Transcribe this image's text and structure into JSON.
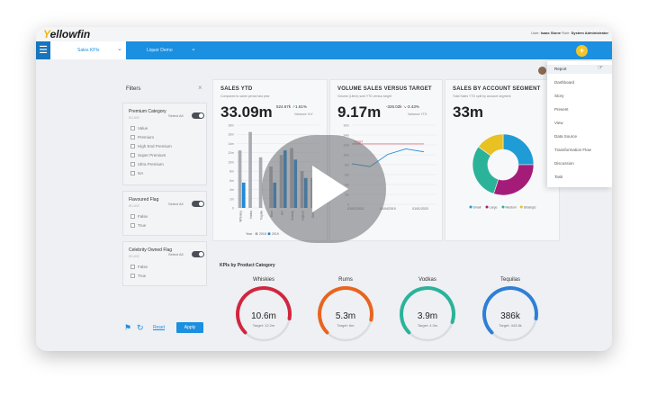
{
  "app": {
    "logo": "Yellowfin",
    "user_label": "User:",
    "user_name": "Isaac Stone",
    "role_label": "Role:",
    "role_name": "System Administrator"
  },
  "nav": {
    "tab1": "Sales KPIs",
    "tab2": "Liquor Demo"
  },
  "filters": {
    "title": "Filters",
    "groups": [
      {
        "title": "Premium Category",
        "sub": "IS LIKE",
        "select_all": "Select All",
        "options": [
          "Value",
          "Premium",
          "High End Premium",
          "Super Premium",
          "Ultra Premium",
          "NA"
        ]
      },
      {
        "title": "Flavoured Flag",
        "sub": "IS LIKE",
        "select_all": "Select All",
        "options": [
          "False",
          "True"
        ]
      },
      {
        "title": "Celebrity Owned Flag",
        "sub": "IS LIKE",
        "select_all": "Select All",
        "options": [
          "False",
          "True"
        ]
      }
    ],
    "reset": "Reset",
    "apply": "Apply"
  },
  "cards": {
    "sales": {
      "title": "SALES YTD",
      "sub": "Compared to same period last year",
      "value": "33.09m",
      "var1": "524.67k",
      "var2": "1.61%",
      "var_label": "Variance YoY"
    },
    "volume": {
      "title": "VOLUME SALES VERSUS TARGET",
      "sub": "Volume (Liters) sold YTD versus target",
      "value": "9.17m",
      "var1": "-326.02k",
      "var2": "-3.43%",
      "var_label": "Variance YTD"
    },
    "account": {
      "title": "SALES BY ACCOUNT SEGMENT",
      "sub": "Total Sales YTD split by account segment",
      "value": "33m"
    }
  },
  "chart_data": [
    {
      "type": "bar",
      "categories": [
        "Whiskey",
        "Vodka",
        "Tequila",
        "Rum",
        "Gin",
        "Brandy",
        "Liqueur",
        "Other"
      ],
      "series": [
        {
          "name": "2018",
          "values": [
            12.5,
            16.5,
            11,
            9,
            11.5,
            13,
            8,
            6.5
          ]
        },
        {
          "name": "2019",
          "values": [
            5.5,
            0,
            0,
            5.5,
            12.5,
            10.5,
            6.5,
            0
          ]
        }
      ],
      "ylim": [
        0,
        18
      ],
      "yticks": [
        "18m",
        "16m",
        "14m",
        "12m",
        "10m",
        "8m",
        "6m",
        "4m",
        "2m",
        "0"
      ],
      "legend": [
        "Year",
        "2018",
        "2019"
      ]
    },
    {
      "type": "line",
      "x": [
        "2018",
        "Q1",
        "Q2",
        "Q3",
        "2019"
      ],
      "series": [
        {
          "name": "Volume",
          "values": [
            8.2,
            7.6,
            10.1,
            11.2,
            10.6
          ]
        }
      ],
      "target_label": "Target",
      "target": 12.2,
      "yticks": [
        "16m",
        "14m",
        "12m",
        "10m",
        "8m",
        "6m",
        "4m",
        "2m",
        "0"
      ],
      "xticks": [
        "01/01/2018",
        "01/04/2019",
        "01/01/2020"
      ],
      "ylim": [
        0,
        16
      ]
    },
    {
      "type": "pie",
      "labels": [
        "Small",
        "Large",
        "Medium",
        "Strategic"
      ],
      "values": [
        25,
        30,
        30,
        15
      ],
      "colors": [
        "#1f9bd6",
        "#a51c78",
        "#2bb39a",
        "#e8c123"
      ]
    }
  ],
  "kpis": {
    "title": "KPIs by Product Category",
    "items": [
      {
        "name": "Whiskies",
        "value": "10.6m",
        "target": "Target: 12.2m",
        "pct": 0.87,
        "color": "#d2263f"
      },
      {
        "name": "Rums",
        "value": "5.3m",
        "target": "Target: 6m",
        "pct": 0.88,
        "color": "#e8651f"
      },
      {
        "name": "Vodkas",
        "value": "3.9m",
        "target": "Target: 4.3m",
        "pct": 0.9,
        "color": "#2bb39a"
      },
      {
        "name": "Tequilas",
        "value": "386k",
        "target": "Target: 443.8k",
        "pct": 0.87,
        "color": "#2e7fd6"
      }
    ]
  },
  "menu": {
    "items": [
      "Report",
      "Dashboard",
      "Story",
      "Present",
      "View",
      "Data Source",
      "Transformation Flow",
      "Discussion",
      "Task"
    ]
  }
}
